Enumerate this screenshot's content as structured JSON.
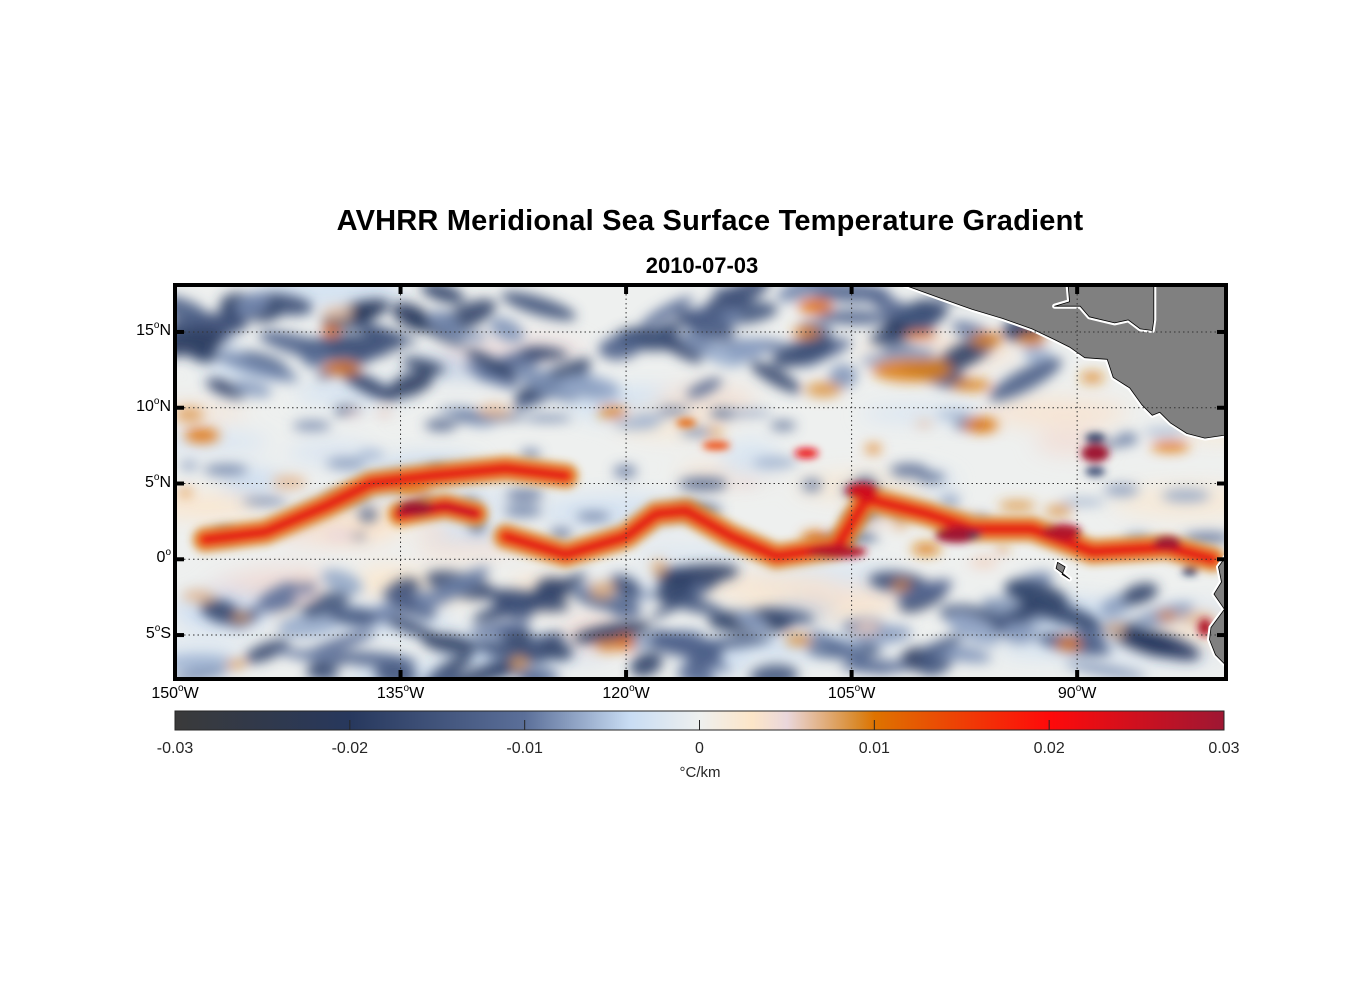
{
  "figure": {
    "title": "AVHRR Meridional Sea Surface Temperature Gradient",
    "subtitle": "2010-07-03"
  },
  "chart_data": {
    "type": "heatmap",
    "title": "AVHRR Meridional Sea Surface Temperature Gradient",
    "subtitle": "2010-07-03",
    "projection": "equirectangular",
    "lon_range_deg": [
      -150,
      -80.1
    ],
    "lat_range_deg": [
      -7.9,
      18.1
    ],
    "x_ticks": [
      {
        "value": -150,
        "num": "150",
        "unit": "o",
        "hemi": "W"
      },
      {
        "value": -135,
        "num": "135",
        "unit": "o",
        "hemi": "W"
      },
      {
        "value": -120,
        "num": "120",
        "unit": "o",
        "hemi": "W"
      },
      {
        "value": -105,
        "num": "105",
        "unit": "o",
        "hemi": "W"
      },
      {
        "value": -90,
        "num": "90",
        "unit": "o",
        "hemi": "W"
      }
    ],
    "y_ticks": [
      {
        "value": 15,
        "num": "15",
        "unit": "o",
        "hemi": "N"
      },
      {
        "value": 10,
        "num": "10",
        "unit": "o",
        "hemi": "N"
      },
      {
        "value": 5,
        "num": "5",
        "unit": "o",
        "hemi": "N"
      },
      {
        "value": 0,
        "num": "0",
        "unit": "o",
        "hemi": ""
      },
      {
        "value": -5,
        "num": "5",
        "unit": "o",
        "hemi": "S"
      }
    ],
    "grid": "dotted",
    "colorbar": {
      "location": "bottom",
      "range": [
        -0.03,
        0.03
      ],
      "ticks": [
        "-0.03",
        "-0.02",
        "-0.01",
        "0",
        "0.01",
        "0.02",
        "0.03"
      ],
      "label": "°C/km",
      "colormap_stops": [
        {
          "value": -0.03,
          "color": "#3a3a3a"
        },
        {
          "value": -0.02,
          "color": "#27385d"
        },
        {
          "value": -0.01,
          "color": "#5b6f99"
        },
        {
          "value": -0.004,
          "color": "#c8dcf3"
        },
        {
          "value": 0,
          "color": "#eef0ef"
        },
        {
          "value": 0.003,
          "color": "#fde6c8"
        },
        {
          "value": 0.005,
          "color": "#ead7db"
        },
        {
          "value": 0.009,
          "color": "#d98a2c"
        },
        {
          "value": 0.01,
          "color": "#de7300"
        },
        {
          "value": 0.02,
          "color": "#ff0a0a"
        },
        {
          "value": 0.03,
          "color": "#9e1733"
        }
      ]
    },
    "features": [
      {
        "name": "equatorial-warm-front",
        "kind": "positive",
        "value": 0.02,
        "path_lonlat": [
          [
            -148,
            1.3
          ],
          [
            -144,
            1.8
          ],
          [
            -140,
            3.5
          ],
          [
            -137,
            5.0
          ],
          [
            -133,
            5.5
          ],
          [
            -128,
            6.0
          ],
          [
            -124,
            5.5
          ]
        ]
      },
      {
        "name": "tropical-instability-wave-1",
        "kind": "positive",
        "value": 0.025,
        "path_lonlat": [
          [
            -135,
            3.0
          ],
          [
            -132,
            3.5
          ],
          [
            -130,
            3.0
          ]
        ]
      },
      {
        "name": "tropical-instability-wave-2",
        "kind": "positive",
        "value": 0.02,
        "path_lonlat": [
          [
            -128,
            1.5
          ],
          [
            -124,
            0.3
          ],
          [
            -120,
            1.5
          ],
          [
            -118,
            3.0
          ],
          [
            -116,
            3.2
          ],
          [
            -113,
            1.5
          ],
          [
            -110,
            0.2
          ],
          [
            -106,
            0.8
          ],
          [
            -104,
            4.0
          ],
          [
            -100,
            3.0
          ],
          [
            -97,
            2.0
          ],
          [
            -93,
            2.0
          ],
          [
            -89,
            0.5
          ],
          [
            -84,
            0.8
          ],
          [
            -81,
            0
          ]
        ]
      },
      {
        "name": "north-cold-patches",
        "kind": "negative",
        "value": -0.018,
        "lat_band": [
          11,
          18
        ]
      },
      {
        "name": "south-cold-streaks",
        "kind": "negative",
        "value": -0.018,
        "lat_band": [
          -8,
          -1
        ]
      }
    ],
    "land": [
      "Central America",
      "South America coast",
      "Galapagos"
    ],
    "land_color": "#808080"
  }
}
